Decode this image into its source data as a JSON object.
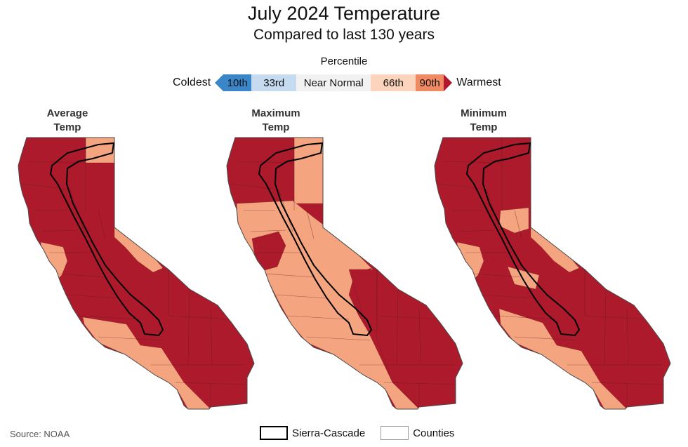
{
  "title": "July 2024 Temperature",
  "subtitle": "Compared to last 130 years",
  "percentile_label": "Percentile",
  "legend": {
    "left_label": "Coldest",
    "right_label": "Warmest",
    "bins": [
      {
        "label": "10th",
        "color": "#3a86c8"
      },
      {
        "label": "33rd",
        "color": "#c6dbef"
      },
      {
        "label": "Near Normal",
        "color": "#f2f2f2"
      },
      {
        "label": "66th",
        "color": "#fcd3bc"
      },
      {
        "label": "90th",
        "color": "#ef8a62"
      }
    ],
    "warm_end_color": "#b2182b"
  },
  "maps": [
    {
      "title_line1": "Average",
      "title_line2": "Temp"
    },
    {
      "title_line1": "Maximum",
      "title_line2": "Temp"
    },
    {
      "title_line1": "Minimum",
      "title_line2": "Temp"
    }
  ],
  "colors": {
    "warmest": "#ad1a2b",
    "above_90th": "#ef8a62",
    "above_66th": "#f4a57f",
    "county_line": "#5a1a1f",
    "sierra_outline": "#000000"
  },
  "bottom_legend": {
    "sierra_label": "Sierra-Cascade",
    "counties_label": "Counties"
  },
  "source": "Source: NOAA"
}
